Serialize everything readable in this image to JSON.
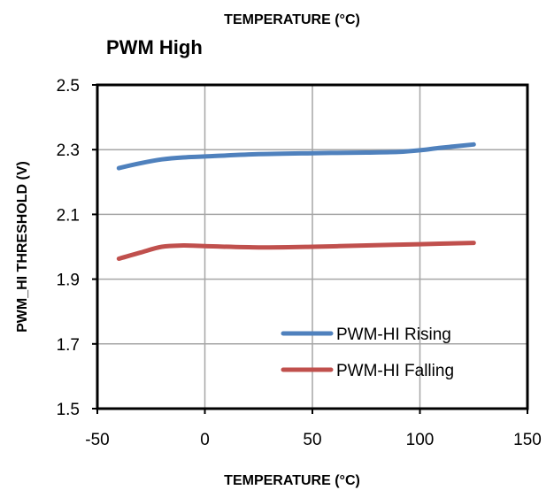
{
  "chart_data": {
    "type": "line",
    "top_label": "TEMPERATURE (°C)",
    "title": "PWM High",
    "xlabel": "TEMPERATURE (°C)",
    "ylabel": "PWM_HI THRESHOLD (V)",
    "xlim": [
      -50,
      150
    ],
    "ylim": [
      1.5,
      2.5
    ],
    "x_ticks": [
      "-50",
      "0",
      "50",
      "100",
      "150"
    ],
    "y_ticks": [
      "1.5",
      "1.7",
      "1.9",
      "2.1",
      "2.3",
      "2.5"
    ],
    "grid": true,
    "legend_position": "bottom-right",
    "series": [
      {
        "name": "PWM-HI Rising",
        "color": "#4F81BD",
        "x": [
          -40,
          -30,
          -20,
          -10,
          0,
          25,
          50,
          75,
          90,
          100,
          110,
          125
        ],
        "y": [
          2.243,
          2.258,
          2.27,
          2.276,
          2.279,
          2.286,
          2.289,
          2.291,
          2.293,
          2.298,
          2.306,
          2.316
        ]
      },
      {
        "name": "PWM-HI Falling",
        "color": "#C0504D",
        "x": [
          -40,
          -30,
          -20,
          -10,
          0,
          25,
          50,
          75,
          100,
          125
        ],
        "y": [
          1.963,
          1.982,
          2.0,
          2.004,
          2.002,
          1.998,
          2.0,
          2.004,
          2.008,
          2.012
        ]
      }
    ]
  }
}
